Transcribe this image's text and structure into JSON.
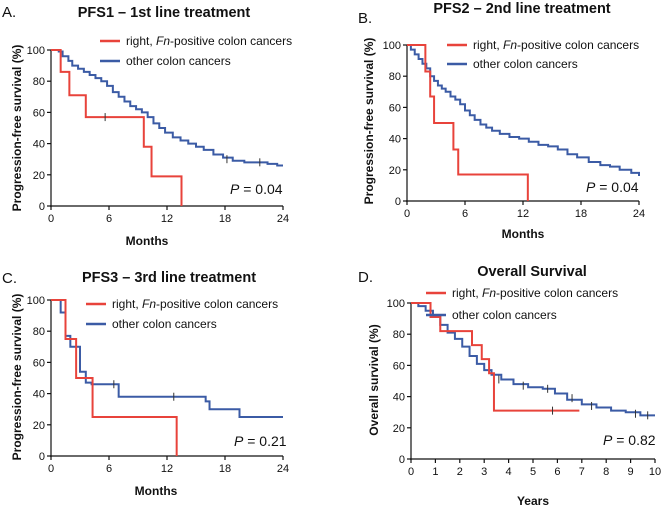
{
  "figure_colors": {
    "red": "#e8433b",
    "blue": "#3b5ba5",
    "axis": "#111111"
  },
  "chart_data": [
    {
      "type": "line",
      "panel_letter": "A.",
      "title": "PFS1 – 1st line treatment",
      "xlabel": "Months",
      "ylabel": "Progression-free survival (%)",
      "xlim": [
        0,
        24
      ],
      "ylim": [
        0,
        100
      ],
      "xticks": [
        "0",
        "6",
        "12",
        "18",
        "24"
      ],
      "yticks": [
        "0",
        "20",
        "40",
        "60",
        "80",
        "100"
      ],
      "p_label": "P",
      "p_value": " = 0.04",
      "legend": [
        "right, ",
        "Fn",
        "-positive colon cancers",
        "other colon cancers"
      ],
      "series": [
        {
          "name": "right, Fn-positive colon cancers",
          "color": "red",
          "x": [
            0,
            1,
            1,
            1.9,
            1.9,
            3.6,
            3.6,
            9.6,
            9.6,
            10.4,
            10.4,
            13.5,
            13.5
          ],
          "y": [
            100,
            100,
            86,
            86,
            71,
            71,
            57,
            57,
            38,
            38,
            19,
            19,
            0
          ],
          "censor_x": [
            5.6
          ],
          "censor_y": [
            57
          ]
        },
        {
          "name": "other colon cancers",
          "color": "blue",
          "x": [
            0,
            0.8,
            1.2,
            1.8,
            2.2,
            2.8,
            3.4,
            4,
            4.6,
            5.2,
            5.8,
            6.4,
            7,
            7.6,
            8.2,
            8.8,
            9.4,
            10,
            10.6,
            11.2,
            11.8,
            12.6,
            13.4,
            14.2,
            15,
            15.8,
            16.8,
            17.8,
            18.8,
            20,
            21.2,
            22.4,
            23.4,
            24
          ],
          "y": [
            100,
            99,
            96,
            93,
            90,
            88,
            86,
            84,
            82,
            80,
            77,
            73,
            70,
            67,
            64,
            62,
            60,
            57,
            53,
            50,
            47,
            44,
            42,
            40,
            38,
            36,
            33,
            31,
            29,
            28,
            28,
            27,
            26,
            26
          ],
          "censor_x": [
            18.2,
            21.6
          ],
          "censor_y": [
            30,
            28
          ]
        }
      ]
    },
    {
      "type": "line",
      "panel_letter": "B.",
      "title": "PFS2 – 2nd line treatment",
      "xlabel": "Months",
      "ylabel": "Progression-free survival (%)",
      "xlim": [
        0,
        24
      ],
      "ylim": [
        0,
        100
      ],
      "xticks": [
        "0",
        "6",
        "12",
        "18",
        "24"
      ],
      "yticks": [
        "0",
        "20",
        "40",
        "60",
        "80",
        "100"
      ],
      "p_label": "P",
      "p_value": " = 0.04",
      "legend": [
        "right, ",
        "Fn",
        "-positive colon cancers",
        "other colon cancers"
      ],
      "series": [
        {
          "name": "right, Fn-positive colon cancers",
          "color": "red",
          "x": [
            0,
            1.9,
            1.9,
            2.4,
            2.4,
            2.8,
            2.8,
            4.8,
            4.8,
            5.3,
            5.3,
            12.5,
            12.5
          ],
          "y": [
            100,
            100,
            83,
            83,
            67,
            67,
            50,
            50,
            33,
            33,
            17,
            17,
            0
          ],
          "censor_x": [],
          "censor_y": []
        },
        {
          "name": "other colon cancers",
          "color": "blue",
          "x": [
            0,
            0.4,
            0.8,
            1.2,
            1.6,
            2,
            2.4,
            2.8,
            3.2,
            3.6,
            4,
            4.5,
            5,
            5.5,
            6,
            6.5,
            7,
            7.6,
            8.2,
            8.8,
            9.6,
            10.6,
            11.6,
            12.6,
            13.6,
            14.6,
            15.6,
            16.6,
            17.6,
            18.8,
            20,
            21,
            22,
            23.2,
            24
          ],
          "y": [
            100,
            97,
            94,
            91,
            88,
            85,
            80,
            77,
            74,
            72,
            70,
            67,
            65,
            62,
            58,
            55,
            52,
            49,
            47,
            45,
            43,
            41,
            40,
            38,
            36,
            35,
            33,
            30,
            28,
            25,
            23,
            22,
            20,
            18,
            16
          ],
          "censor_x": [],
          "censor_y": []
        }
      ]
    },
    {
      "type": "line",
      "panel_letter": "C.",
      "title": "PFS3 – 3rd line treatment",
      "xlabel": "Months",
      "ylabel": "Progression-free survival (%)",
      "xlim": [
        0,
        24
      ],
      "ylim": [
        0,
        100
      ],
      "xticks": [
        "0",
        "6",
        "12",
        "18",
        "24"
      ],
      "yticks": [
        "0",
        "20",
        "40",
        "60",
        "80",
        "100"
      ],
      "p_label": "P",
      "p_value": " = 0.21",
      "legend": [
        "right, ",
        "Fn",
        "-positive colon cancers",
        "other colon cancers"
      ],
      "series": [
        {
          "name": "right, Fn-positive colon cancers",
          "color": "red",
          "x": [
            0,
            1.5,
            1.5,
            2.6,
            2.6,
            4.3,
            4.3,
            13,
            13
          ],
          "y": [
            100,
            100,
            75,
            75,
            50,
            50,
            25,
            25,
            0
          ],
          "censor_x": [],
          "censor_y": []
        },
        {
          "name": "other colon cancers",
          "color": "blue",
          "x": [
            0,
            1,
            1,
            1.5,
            1.5,
            2,
            2,
            3,
            3,
            3.6,
            3.6,
            4.2,
            4.2,
            7,
            7,
            16,
            16,
            16.4,
            16.4,
            19.5,
            19.5,
            24
          ],
          "y": [
            100,
            100,
            92,
            92,
            77,
            77,
            70,
            70,
            54,
            54,
            47,
            47,
            46,
            46,
            38,
            38,
            35,
            35,
            30,
            30,
            25,
            25
          ],
          "censor_x": [
            6.5,
            12.7
          ],
          "censor_y": [
            46,
            38
          ]
        }
      ]
    },
    {
      "type": "line",
      "panel_letter": "D.",
      "title": "Overall Survival",
      "xlabel": "Years",
      "ylabel": "Overall survival (%)",
      "xlim": [
        0,
        10
      ],
      "ylim": [
        0,
        100
      ],
      "xticks": [
        "0",
        "1",
        "2",
        "3",
        "4",
        "5",
        "6",
        "7",
        "8",
        "9",
        "10"
      ],
      "yticks": [
        "0",
        "20",
        "40",
        "60",
        "80",
        "100"
      ],
      "p_label": "P",
      "p_value": " = 0.82",
      "legend": [
        "right, ",
        "Fn",
        "-positive colon cancers",
        "other colon cancers"
      ],
      "series": [
        {
          "name": "right, Fn-positive colon cancers",
          "color": "red",
          "x": [
            0,
            0.8,
            0.8,
            1.2,
            1.2,
            2.5,
            2.5,
            2.9,
            2.9,
            3.2,
            3.2,
            3.4,
            3.4,
            6.9
          ],
          "y": [
            100,
            100,
            91,
            91,
            82,
            82,
            73,
            73,
            64,
            64,
            55,
            55,
            31,
            31
          ],
          "censor_x": [
            5.8
          ],
          "censor_y": [
            31
          ]
        },
        {
          "name": "other colon cancers",
          "color": "blue",
          "x": [
            0,
            0.3,
            0.6,
            0.9,
            1.2,
            1.5,
            1.8,
            2.1,
            2.4,
            2.7,
            3,
            3.3,
            3.7,
            4.2,
            4.8,
            5.4,
            5.9,
            6.4,
            7,
            7.6,
            8.2,
            8.8,
            9.4,
            10
          ],
          "y": [
            100,
            98,
            95,
            91,
            86,
            81,
            77,
            72,
            66,
            61,
            57,
            54,
            51,
            48,
            46,
            45,
            42,
            38,
            35,
            33,
            31,
            30,
            28,
            28
          ],
          "censor_x": [
            3.6,
            4.6,
            5.6,
            6.6,
            7.4,
            9.2,
            9.7
          ],
          "censor_y": [
            51,
            47,
            45,
            39,
            34,
            29,
            28
          ]
        }
      ]
    }
  ]
}
